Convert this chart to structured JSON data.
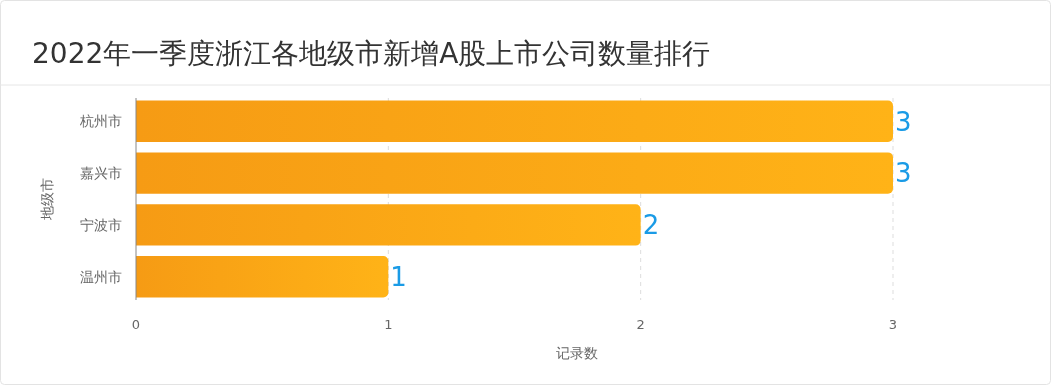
{
  "chart_data": {
    "type": "bar",
    "orientation": "horizontal",
    "title": "2022年一季度浙江各地级市新增A股上市公司数量排行",
    "xlabel": "记录数",
    "ylabel": "地级市",
    "categories": [
      "杭州市",
      "嘉兴市",
      "宁波市",
      "温州市"
    ],
    "values": [
      3,
      3,
      2,
      1
    ],
    "color": "#ffa115",
    "xlim": [
      0,
      3
    ],
    "xticks": [
      0,
      1,
      2,
      3
    ],
    "grid": "x",
    "data_labels": true
  }
}
